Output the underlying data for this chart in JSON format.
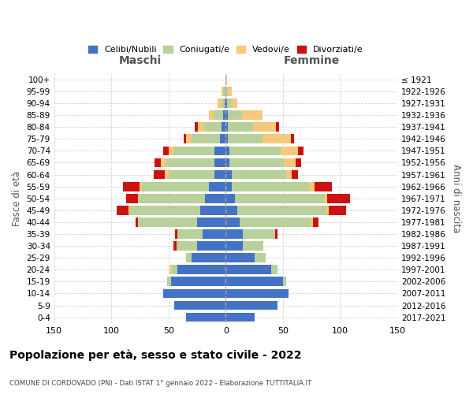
{
  "age_groups": [
    "0-4",
    "5-9",
    "10-14",
    "15-19",
    "20-24",
    "25-29",
    "30-34",
    "35-39",
    "40-44",
    "45-49",
    "50-54",
    "55-59",
    "60-64",
    "65-69",
    "70-74",
    "75-79",
    "80-84",
    "85-89",
    "90-94",
    "95-99",
    "100+"
  ],
  "birth_years": [
    "2017-2021",
    "2012-2016",
    "2007-2011",
    "2002-2006",
    "1997-2001",
    "1992-1996",
    "1987-1991",
    "1982-1986",
    "1977-1981",
    "1972-1976",
    "1967-1971",
    "1962-1966",
    "1957-1961",
    "1952-1956",
    "1947-1951",
    "1942-1946",
    "1937-1941",
    "1932-1936",
    "1927-1931",
    "1922-1926",
    "≤ 1921"
  ],
  "colors": {
    "celibe": "#4472c4",
    "coniugato": "#b8d09a",
    "vedovo": "#f5c97a",
    "divorziato": "#cc1111"
  },
  "maschi": {
    "celibe": [
      35,
      45,
      55,
      48,
      42,
      30,
      25,
      20,
      25,
      22,
      18,
      15,
      10,
      10,
      10,
      5,
      4,
      2,
      1,
      0,
      0
    ],
    "coniugato": [
      0,
      0,
      0,
      3,
      5,
      5,
      18,
      22,
      52,
      62,
      58,
      58,
      40,
      42,
      35,
      25,
      15,
      8,
      3,
      2,
      0
    ],
    "vedovo": [
      0,
      0,
      0,
      0,
      2,
      0,
      0,
      0,
      0,
      1,
      1,
      2,
      3,
      5,
      5,
      5,
      5,
      5,
      3,
      2,
      0
    ],
    "divorziato": [
      0,
      0,
      0,
      0,
      0,
      0,
      3,
      2,
      2,
      10,
      10,
      15,
      10,
      5,
      5,
      2,
      3,
      0,
      0,
      0,
      0
    ]
  },
  "femmine": {
    "nubile": [
      25,
      45,
      55,
      50,
      40,
      25,
      15,
      15,
      12,
      10,
      8,
      5,
      5,
      3,
      3,
      2,
      2,
      2,
      1,
      0,
      0
    ],
    "coniugata": [
      0,
      0,
      0,
      3,
      5,
      10,
      18,
      28,
      62,
      78,
      78,
      68,
      48,
      48,
      45,
      30,
      22,
      12,
      4,
      2,
      0
    ],
    "vedova": [
      0,
      0,
      0,
      0,
      0,
      0,
      0,
      0,
      2,
      2,
      3,
      5,
      5,
      10,
      15,
      25,
      20,
      18,
      5,
      3,
      1
    ],
    "divorziata": [
      0,
      0,
      0,
      0,
      0,
      0,
      0,
      2,
      5,
      15,
      20,
      15,
      5,
      5,
      5,
      3,
      3,
      0,
      0,
      0,
      0
    ]
  },
  "xlim": 150,
  "title": "Popolazione per età, sesso e stato civile - 2022",
  "subtitle": "COMUNE DI CORDOVADO (PN) - Dati ISTAT 1° gennaio 2022 - Elaborazione TUTTITALIA.IT",
  "ylabel_left": "Fasce di età",
  "ylabel_right": "Anni di nascita"
}
